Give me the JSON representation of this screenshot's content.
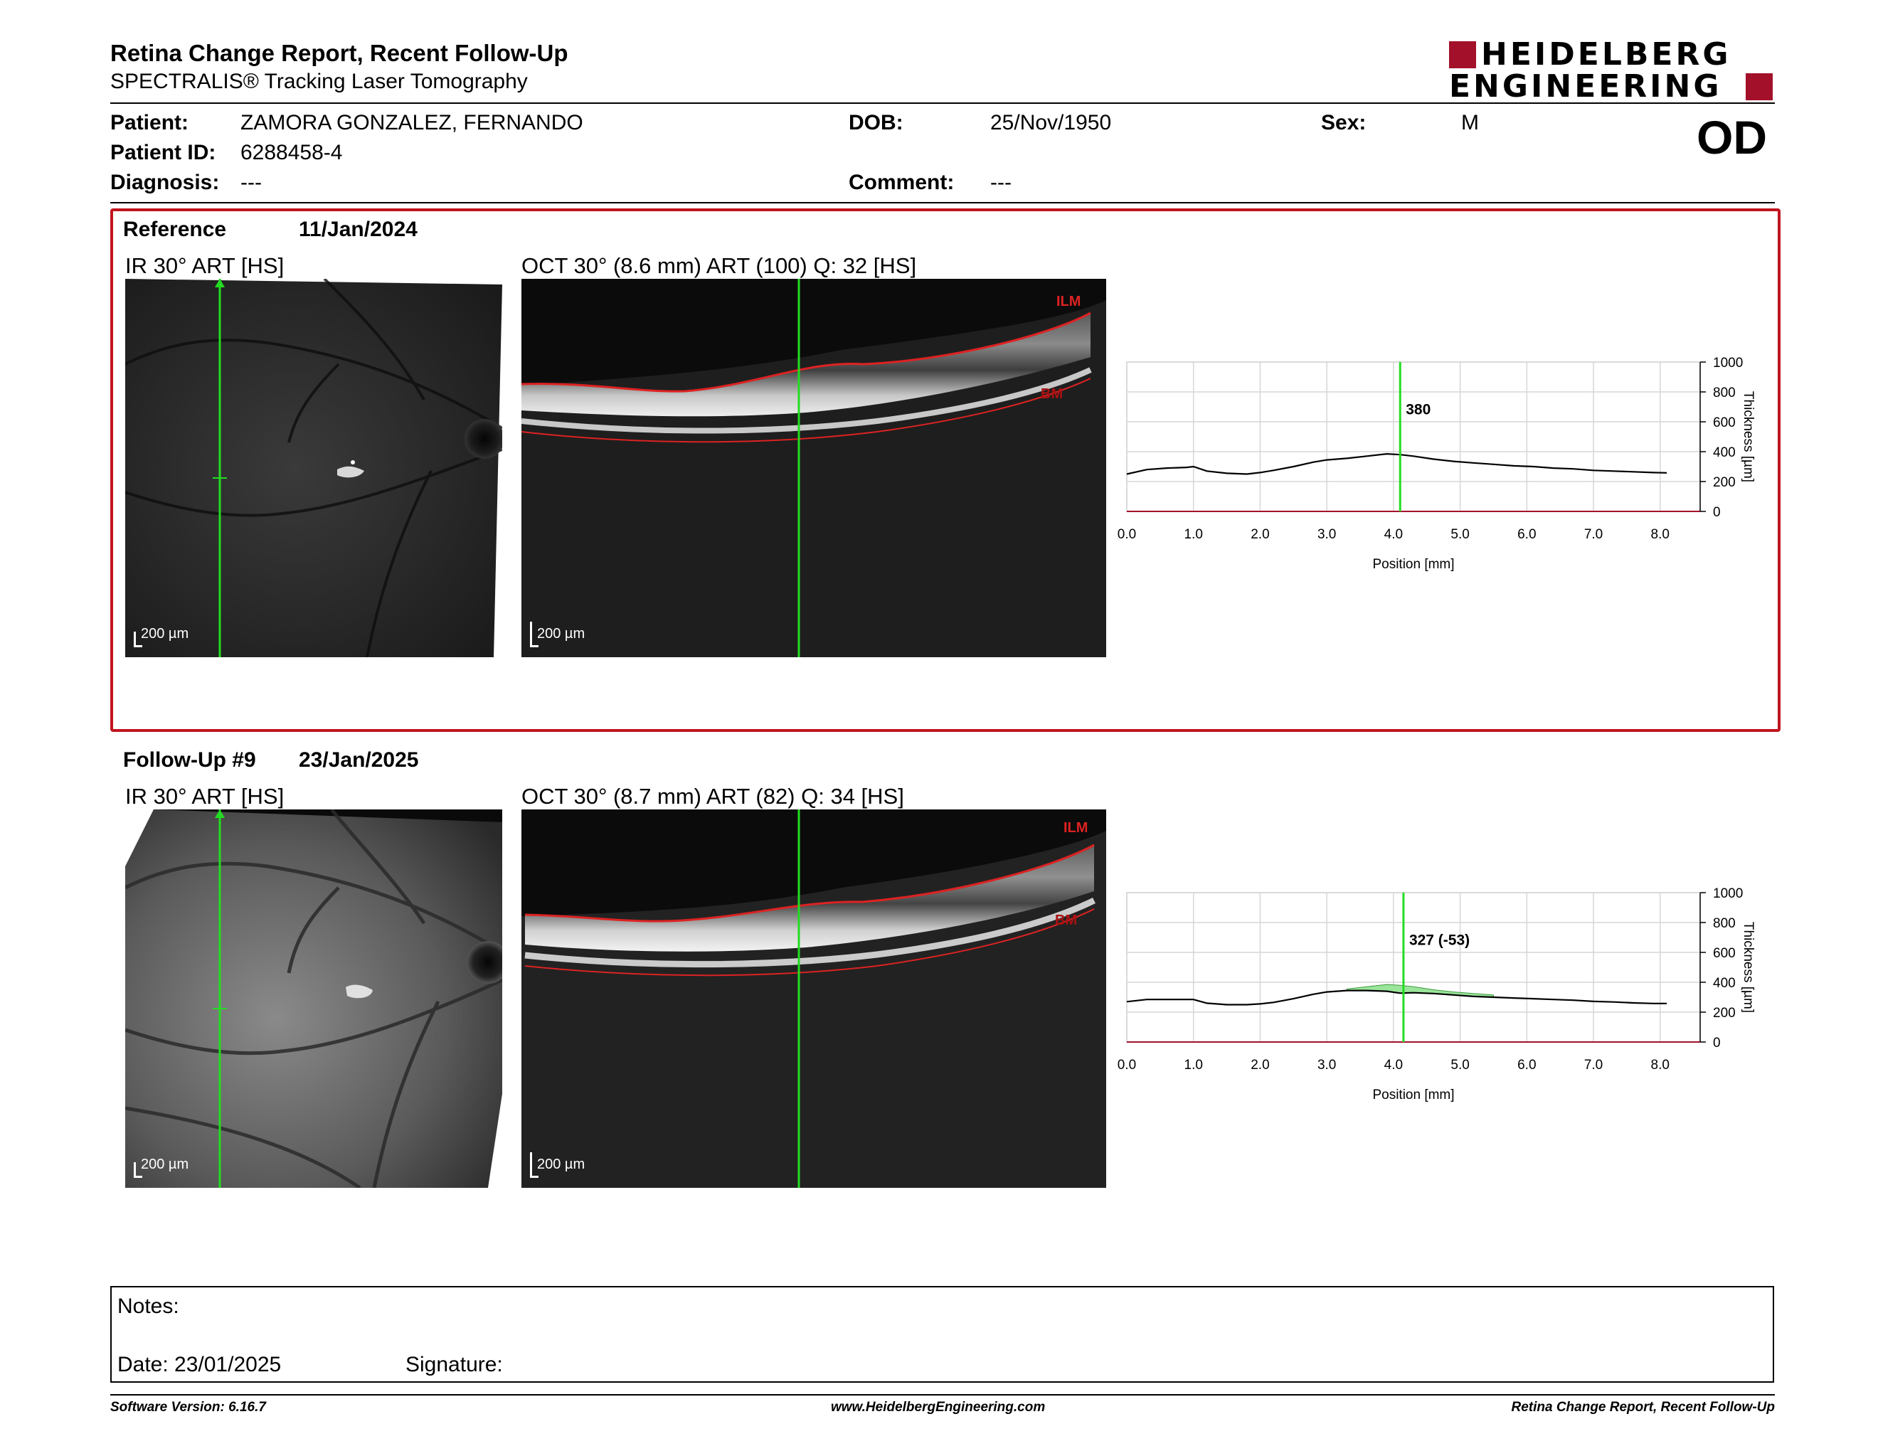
{
  "header": {
    "title": "Retina Change Report, Recent Follow-Up",
    "subtitle": "SPECTRALIS® Tracking Laser Tomography",
    "logo_line1": "HEIDELBERG",
    "logo_line2": "ENGINEERING",
    "eye": "OD"
  },
  "patient": {
    "patient_label": "Patient:",
    "patient_value": "ZAMORA GONZALEZ, FERNANDO",
    "dob_label": "DOB:",
    "dob_value": "25/Nov/1950",
    "sex_label": "Sex:",
    "sex_value": "M",
    "id_label": "Patient ID:",
    "id_value": "6288458-4",
    "diagnosis_label": "Diagnosis:",
    "diagnosis_value": "---",
    "comment_label": "Comment:",
    "comment_value": "---"
  },
  "reference": {
    "label": "Reference",
    "date": "11/Jan/2024",
    "ir_title": "IR 30° ART [HS]",
    "oct_title": "OCT 30° (8.6 mm) ART (100) Q: 32 [HS]",
    "scale_ir": "200 µm",
    "scale_oct": "200 µm",
    "ilm": "ILM",
    "bm": "BM"
  },
  "followup": {
    "label": "Follow-Up #9",
    "date": "23/Jan/2025",
    "ir_title": "IR 30° ART [HS]",
    "oct_title": "OCT 30° (8.7 mm) ART (82) Q: 34 [HS]",
    "scale_ir": "200 µm",
    "scale_oct": "200 µm",
    "ilm": "ILM",
    "bm": "BM"
  },
  "chart_data": [
    {
      "type": "line",
      "xlabel": "Position [mm]",
      "ylabel": "Thickness [µm]",
      "xlim": [
        0,
        8.6
      ],
      "ylim": [
        0,
        1000
      ],
      "x_ticks": [
        "0.0",
        "1.0",
        "2.0",
        "3.0",
        "4.0",
        "5.0",
        "6.0",
        "7.0",
        "8.0"
      ],
      "y_ticks": [
        "0",
        "200",
        "400",
        "600",
        "800",
        "1000"
      ],
      "grid": true,
      "marker_x": 4.1,
      "marker_label": "380",
      "series": [
        {
          "x": [
            0.0,
            0.3,
            0.6,
            0.9,
            1.0,
            1.2,
            1.5,
            1.8,
            2.0,
            2.2,
            2.5,
            2.8,
            3.0,
            3.3,
            3.6,
            3.9,
            4.1,
            4.3,
            4.6,
            4.9,
            5.2,
            5.5,
            5.8,
            6.1,
            6.4,
            6.7,
            7.0,
            7.3,
            7.6,
            7.9,
            8.1
          ],
          "y": [
            250,
            280,
            290,
            295,
            300,
            270,
            255,
            250,
            260,
            275,
            300,
            330,
            345,
            355,
            370,
            385,
            380,
            370,
            350,
            335,
            325,
            315,
            305,
            300,
            290,
            285,
            275,
            270,
            265,
            260,
            258
          ]
        }
      ]
    },
    {
      "type": "line",
      "xlabel": "Position [mm]",
      "ylabel": "Thickness [µm]",
      "xlim": [
        0,
        8.6
      ],
      "ylim": [
        0,
        1000
      ],
      "x_ticks": [
        "0.0",
        "1.0",
        "2.0",
        "3.0",
        "4.0",
        "5.0",
        "6.0",
        "7.0",
        "8.0"
      ],
      "y_ticks": [
        "0",
        "200",
        "400",
        "600",
        "800",
        "1000"
      ],
      "grid": true,
      "marker_x": 4.15,
      "marker_label": "327 (-53)",
      "series": [
        {
          "x": [
            0.0,
            0.3,
            0.6,
            0.9,
            1.0,
            1.2,
            1.5,
            1.8,
            2.0,
            2.2,
            2.5,
            2.8,
            3.0,
            3.3,
            3.6,
            3.9,
            4.1,
            4.3,
            4.6,
            4.9,
            5.2,
            5.5,
            5.8,
            6.1,
            6.4,
            6.7,
            7.0,
            7.3,
            7.6,
            7.9,
            8.1
          ],
          "y": [
            270,
            285,
            285,
            285,
            285,
            260,
            250,
            250,
            255,
            265,
            290,
            320,
            335,
            345,
            345,
            340,
            327,
            330,
            325,
            315,
            305,
            300,
            295,
            290,
            285,
            280,
            272,
            268,
            262,
            258,
            258
          ]
        }
      ]
    }
  ],
  "notes": {
    "notes_label": "Notes:",
    "date_label": "Date: 23/01/2025",
    "signature_label": "Signature:"
  },
  "footer": {
    "software": "Software Version: 6.16.7",
    "website": "www.HeidelbergEngineering.com",
    "report": "Retina Change Report, Recent Follow-Up"
  }
}
